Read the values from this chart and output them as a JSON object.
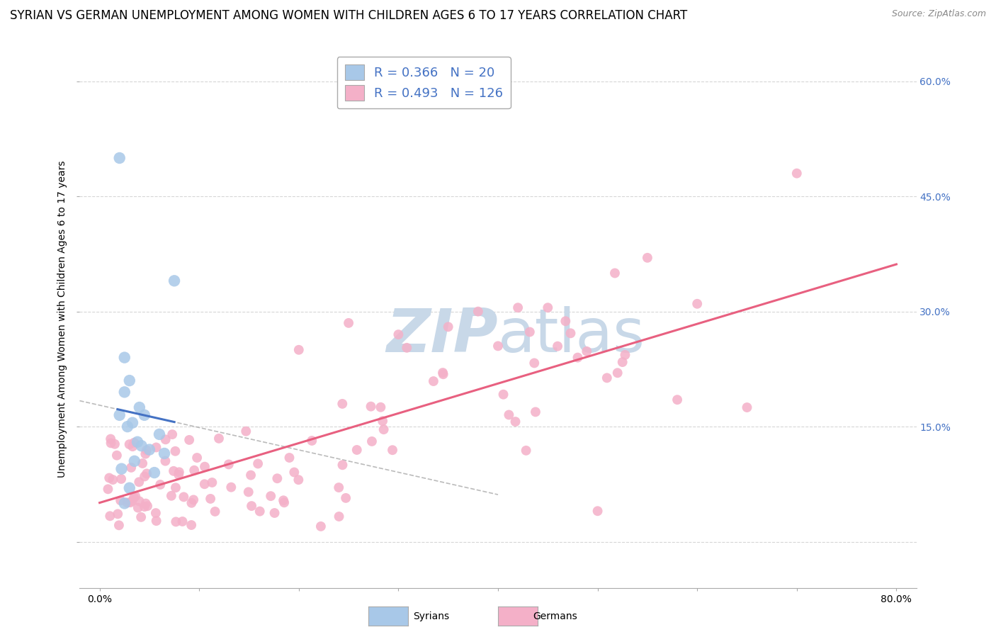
{
  "title": "SYRIAN VS GERMAN UNEMPLOYMENT AMONG WOMEN WITH CHILDREN AGES 6 TO 17 YEARS CORRELATION CHART",
  "source": "Source: ZipAtlas.com",
  "ylabel": "Unemployment Among Women with Children Ages 6 to 17 years",
  "xlim": [
    -0.02,
    0.82
  ],
  "ylim": [
    -0.06,
    0.64
  ],
  "y_ticks": [
    0.0,
    0.15,
    0.3,
    0.45,
    0.6
  ],
  "y_tick_labels_right": [
    "",
    "15.0%",
    "30.0%",
    "45.0%",
    "60.0%"
  ],
  "x_tick_left": "0.0%",
  "x_tick_right": "80.0%",
  "syrian_R": 0.366,
  "syrian_N": 20,
  "german_R": 0.493,
  "german_N": 126,
  "syrian_color": "#a8c8e8",
  "german_color": "#f4b0c8",
  "syrian_line_color": "#4472c4",
  "german_line_color": "#e86080",
  "background_color": "#ffffff",
  "grid_color": "#cccccc",
  "watermark_color": "#c8d8e8",
  "legend_text_color": "#4472c4",
  "title_fontsize": 12,
  "ylabel_fontsize": 10,
  "tick_fontsize": 10,
  "legend_fontsize": 13,
  "source_fontsize": 9
}
